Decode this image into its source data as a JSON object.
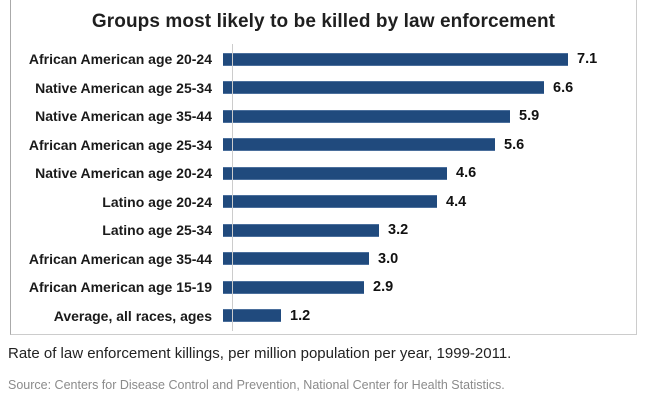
{
  "chart_data": {
    "type": "bar",
    "orientation": "horizontal",
    "title": "Groups most likely to be killed by law enforcement",
    "categories": [
      "African American age 20-24",
      "Native American age 25-34",
      "Native American age 35-44",
      "African American age 25-34",
      "Native American age 20-24",
      "Latino age 20-24",
      "Latino age 25-34",
      "African American age 35-44",
      "African American age 15-19",
      "Average, all races, ages"
    ],
    "values": [
      7.1,
      6.6,
      5.9,
      5.6,
      4.6,
      4.4,
      3.2,
      3.0,
      2.9,
      1.2
    ],
    "value_labels": [
      "7.1",
      "6.6",
      "5.9",
      "5.6",
      "4.6",
      "4.4",
      "3.2",
      "3.0",
      "2.9",
      "1.2"
    ],
    "xlabel": "",
    "ylabel": "",
    "xlim": [
      0,
      7.5
    ],
    "grid": false,
    "legend": false,
    "value_label_position": "right-of-bar"
  },
  "caption": "Rate of law enforcement killings, per million population per year, 1999-2011.",
  "source": "Source: Centers for Disease Control and Prevention, National Center for Health Statistics.",
  "colors": {
    "bar": "#204a7d",
    "bar_edge": "#4b6f9c",
    "title_text": "#1f1f1f",
    "category_text": "#1a1a1a",
    "value_text": "#111111",
    "caption_text": "#222222",
    "source_text": "#8b8b8b",
    "box_border": "#cccccc",
    "axis_line": "#cccccc",
    "background": "#ffffff"
  }
}
